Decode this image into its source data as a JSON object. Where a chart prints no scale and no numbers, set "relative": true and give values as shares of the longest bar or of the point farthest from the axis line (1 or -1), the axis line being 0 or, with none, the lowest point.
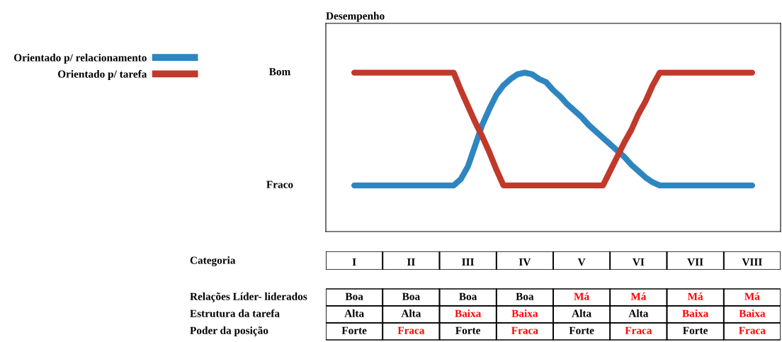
{
  "chart_data": [
    {
      "type": "line",
      "ylabel": "Desempenho",
      "relative": true,
      "tick_labels": "x",
      "legend": "top left",
      "grid": false,
      "marker": "none",
      "line_style": "solid",
      "categories": [
        "I",
        null,
        null,
        null,
        null,
        null,
        null,
        null,
        "II",
        null,
        null,
        null,
        null,
        null,
        null,
        null,
        "III",
        null,
        null,
        null,
        null,
        null,
        null,
        null,
        "IV",
        null,
        null,
        null,
        null,
        null,
        null,
        null,
        "V",
        null,
        null,
        null,
        null,
        null,
        null,
        null,
        "VI",
        null,
        null,
        null,
        null,
        null,
        null,
        null,
        "VII",
        null,
        null,
        null,
        null,
        null,
        null,
        null,
        "VIII"
      ],
      "annotations": [
        "Bom",
        "Fraco"
      ],
      "series": [
        {
          "name": "Orientado p/ relacionamento",
          "color": "#2e86c1",
          "values": [
            0.29,
            0.29,
            0.29,
            0.29,
            0.29,
            0.29,
            0.29,
            0.29,
            0.29,
            0.29,
            0.29,
            0.29,
            0.29,
            0.29,
            0.29,
            0.33,
            0.41,
            0.54,
            0.67,
            0.77,
            0.86,
            0.92,
            0.96,
            0.99,
            1,
            0.99,
            0.96,
            0.94,
            0.89,
            0.85,
            0.8,
            0.76,
            0.72,
            0.67,
            0.63,
            0.59,
            0.55,
            0.51,
            0.47,
            0.42,
            0.38,
            0.34,
            0.31,
            0.29,
            0.29,
            0.29,
            0.29,
            0.29,
            0.29,
            0.29,
            0.29,
            0.29,
            0.29,
            0.29,
            0.29,
            0.29,
            0.29
          ]
        },
        {
          "name": "Orientado p/ tarefa",
          "color": "#c0392b",
          "values": [
            1,
            1,
            1,
            1,
            1,
            1,
            1,
            1,
            1,
            1,
            1,
            1,
            1,
            1,
            1,
            0.89,
            0.79,
            0.69,
            0.6,
            0.5,
            0.39,
            0.29,
            0.29,
            0.29,
            0.29,
            0.29,
            0.29,
            0.29,
            0.29,
            0.29,
            0.29,
            0.29,
            0.29,
            0.29,
            0.29,
            0.29,
            0.38,
            0.47,
            0.56,
            0.64,
            0.74,
            0.82,
            0.92,
            1,
            1,
            1,
            1,
            1,
            1,
            1,
            1,
            1,
            1,
            1,
            1,
            1,
            1
          ]
        }
      ]
    },
    {
      "type": "other",
      "title": "Categoria",
      "y_categories": [
        "Relações Líder- liderados",
        "Estrutura da tarefa",
        "Poder da posição"
      ],
      "cell_labels": [
        [
          "Boa",
          "Boa",
          "Boa",
          "Boa",
          "Má",
          "Má",
          "Má",
          "Má"
        ],
        [
          "Alta",
          "Alta",
          "Baixa",
          "Baixa",
          "Alta",
          "Alta",
          "Baixa",
          "Baixa"
        ],
        [
          "Forte",
          "Fraca",
          "Forte",
          "Fraca",
          "Forte",
          "Fraca",
          "Forte",
          "Fraca"
        ]
      ],
      "colors": [
        [
          "#000000",
          "#000000",
          "#000000",
          "#000000",
          "#ff0000",
          "#ff0000",
          "#ff0000",
          "#ff0000"
        ],
        [
          "#000000",
          "#000000",
          "#ff0000",
          "#ff0000",
          "#000000",
          "#000000",
          "#ff0000",
          "#ff0000"
        ],
        [
          "#000000",
          "#ff0000",
          "#000000",
          "#ff0000",
          "#000000",
          "#ff0000",
          "#000000",
          "#ff0000"
        ]
      ]
    }
  ]
}
